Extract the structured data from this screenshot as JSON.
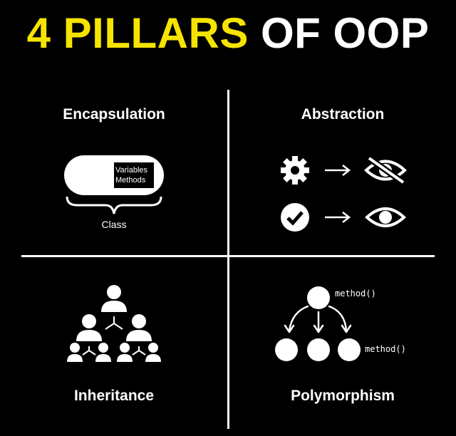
{
  "title": {
    "highlight": "4 PILLARS",
    "rest": "OF OOP"
  },
  "colors": {
    "accent": "#f5e400",
    "background": "#000000",
    "foreground": "#ffffff"
  },
  "quadrants": {
    "encapsulation": {
      "title": "Encapsulation",
      "capsule_lines": [
        "Variables",
        "Methods"
      ],
      "brace_label": "Class"
    },
    "abstraction": {
      "title": "Abstraction",
      "rows": [
        {
          "from_icon": "gear-icon",
          "to_icon": "eye-slash-icon"
        },
        {
          "from_icon": "check-circle-icon",
          "to_icon": "eye-icon"
        }
      ]
    },
    "inheritance": {
      "title": "Inheritance"
    },
    "polymorphism": {
      "title": "Polymorphism",
      "parent_label": "method()",
      "child_label": "method()"
    }
  }
}
